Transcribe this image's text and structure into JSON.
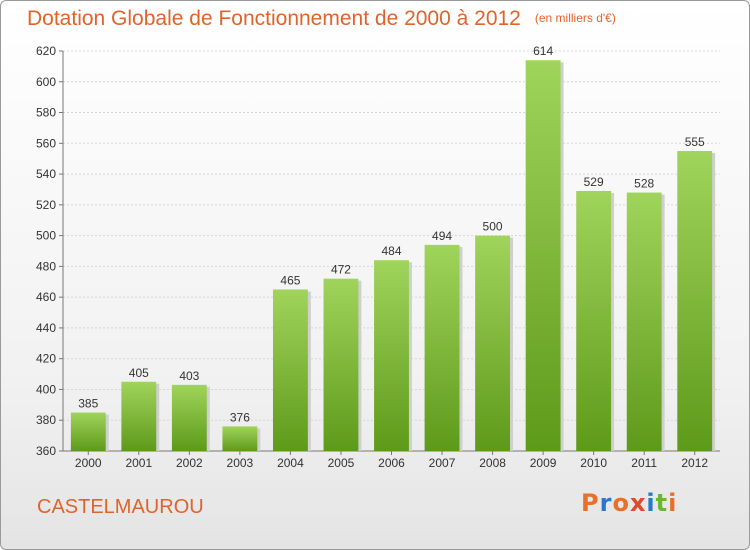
{
  "header": {
    "title": "Dotation Globale de Fonctionnement de 2000 à 2012",
    "subtitle": "(en milliers d'€)"
  },
  "footer": {
    "commune": "CASTELMAUROU",
    "brand_logo": "Proxiti"
  },
  "colors": {
    "title": "#e0642a",
    "bar_light": "#a0d45c",
    "bar_dark": "#5e9a1a",
    "logo_letters": [
      "#e8702a",
      "#2a78c8",
      "#e8702a",
      "#e04a2a",
      "#2a78c8",
      "#6ab82e",
      "#e8702a"
    ]
  },
  "chart_data": {
    "type": "bar",
    "title": "Dotation Globale de Fonctionnement de 2000 à 2012",
    "subtitle": "(en milliers d'€)",
    "xlabel": "",
    "ylabel": "",
    "categories": [
      "2000",
      "2001",
      "2002",
      "2003",
      "2004",
      "2005",
      "2006",
      "2007",
      "2008",
      "2009",
      "2010",
      "2011",
      "2012"
    ],
    "values": [
      385,
      405,
      403,
      376,
      465,
      472,
      484,
      494,
      500,
      614,
      529,
      528,
      555
    ],
    "ylim": [
      360,
      620
    ],
    "yticks": [
      360,
      380,
      400,
      420,
      440,
      460,
      480,
      500,
      520,
      540,
      560,
      580,
      600,
      620
    ],
    "grid": true,
    "legend": "none"
  }
}
